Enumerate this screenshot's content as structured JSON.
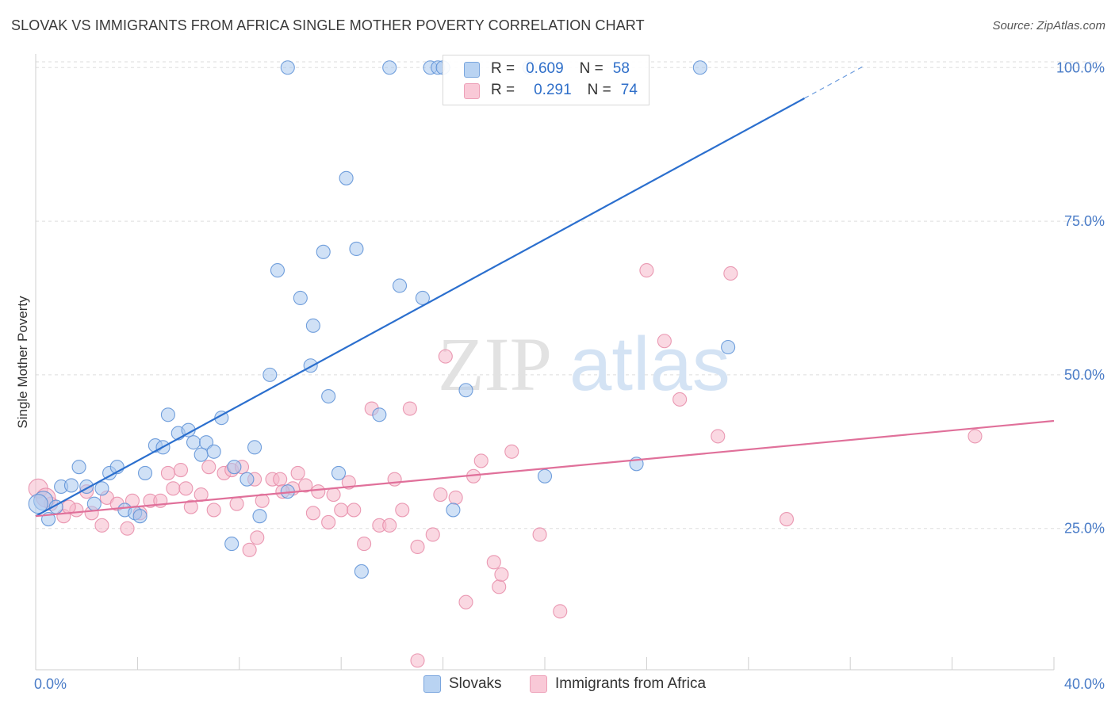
{
  "title": "SLOVAK VS IMMIGRANTS FROM AFRICA SINGLE MOTHER POVERTY CORRELATION CHART",
  "source": "Source: ZipAtlas.com",
  "watermark": {
    "zip": "ZIP",
    "atlas": "atlas"
  },
  "colors": {
    "slovaks_fill": "#a9c8ee",
    "slovaks_stroke": "#5a8fd6",
    "slovaks_line": "#2b6fce",
    "africa_fill": "#f6b8cb",
    "africa_stroke": "#e68aa7",
    "africa_line": "#e0709a",
    "tick_label": "#4a7cc7",
    "grid": "#dddddd"
  },
  "legend": {
    "rows": [
      {
        "r_label": "R =",
        "r_value": "0.609",
        "n_label": "N =",
        "n_value": "58"
      },
      {
        "r_label": "R =",
        "r_value": "0.291",
        "n_label": "N =",
        "n_value": "74"
      }
    ]
  },
  "chart_data": {
    "type": "scatter",
    "title": "SLOVAK VS IMMIGRANTS FROM AFRICA SINGLE MOTHER POVERTY CORRELATION CHART",
    "xlabel": "",
    "ylabel": "Single Mother Poverty",
    "xlim": [
      0,
      40
    ],
    "ylim": [
      2,
      103
    ],
    "x_tick_labels": [
      "0.0%",
      "40.0%"
    ],
    "y_ticks": [
      25,
      50,
      75,
      100
    ],
    "y_tick_labels": [
      "25.0%",
      "50.0%",
      "75.0%",
      "100.0%"
    ],
    "grid": true,
    "legend_position": "top-center",
    "series": [
      {
        "name": "Slovaks",
        "r": 0.609,
        "n": 58,
        "trend": {
          "x0": 0,
          "y0": 27.0,
          "x1": 30.2,
          "y1": 95.0,
          "dashed_to_x": 32.5
        },
        "points": [
          [
            0.3,
            29.5
          ],
          [
            0.5,
            26.5
          ],
          [
            0.8,
            28.5
          ],
          [
            1.0,
            31.8
          ],
          [
            1.4,
            32.0
          ],
          [
            1.7,
            35.0
          ],
          [
            2.0,
            31.8
          ],
          [
            2.3,
            29.0
          ],
          [
            2.6,
            31.5
          ],
          [
            2.9,
            34.0
          ],
          [
            3.2,
            35.0
          ],
          [
            3.5,
            28.0
          ],
          [
            3.9,
            27.5
          ],
          [
            4.1,
            27.0
          ],
          [
            4.3,
            34.0
          ],
          [
            4.7,
            38.5
          ],
          [
            5.0,
            38.2
          ],
          [
            5.2,
            43.5
          ],
          [
            5.6,
            40.5
          ],
          [
            6.0,
            41.0
          ],
          [
            6.2,
            39.0
          ],
          [
            6.5,
            37.0
          ],
          [
            6.7,
            39.0
          ],
          [
            7.0,
            37.5
          ],
          [
            7.3,
            43.0
          ],
          [
            7.7,
            22.5
          ],
          [
            7.8,
            35.0
          ],
          [
            8.3,
            33.0
          ],
          [
            8.6,
            38.2
          ],
          [
            8.8,
            27.0
          ],
          [
            9.2,
            50.0
          ],
          [
            9.5,
            67.0
          ],
          [
            9.9,
            31.0
          ],
          [
            9.9,
            100.0
          ],
          [
            10.4,
            62.5
          ],
          [
            10.8,
            51.5
          ],
          [
            10.9,
            58.0
          ],
          [
            11.3,
            70.0
          ],
          [
            11.5,
            46.5
          ],
          [
            11.9,
            34.0
          ],
          [
            12.2,
            82.0
          ],
          [
            12.6,
            70.5
          ],
          [
            12.8,
            18.0
          ],
          [
            13.5,
            43.5
          ],
          [
            13.9,
            100.0
          ],
          [
            14.3,
            64.5
          ],
          [
            15.5,
            100.0
          ],
          [
            15.8,
            100.0
          ],
          [
            16.0,
            100.0
          ],
          [
            16.4,
            28.0
          ],
          [
            16.9,
            47.5
          ],
          [
            19.4,
            100.0
          ],
          [
            20.0,
            33.5
          ],
          [
            23.6,
            35.5
          ],
          [
            26.1,
            100.0
          ],
          [
            27.2,
            54.5
          ],
          [
            15.2,
            62.5
          ],
          [
            0.1,
            29.0
          ]
        ]
      },
      {
        "name": "Immigrants from Africa",
        "r": 0.291,
        "n": 74,
        "trend": {
          "x0": 0,
          "y0": 27.0,
          "x1": 40,
          "y1": 42.5
        },
        "points": [
          [
            0.1,
            31.5
          ],
          [
            0.6,
            29.0
          ],
          [
            1.1,
            27.0
          ],
          [
            1.6,
            28.0
          ],
          [
            2.0,
            31.0
          ],
          [
            2.2,
            27.5
          ],
          [
            2.6,
            25.5
          ],
          [
            2.8,
            30.0
          ],
          [
            3.2,
            29.0
          ],
          [
            3.6,
            25.0
          ],
          [
            4.1,
            27.5
          ],
          [
            4.5,
            29.5
          ],
          [
            4.9,
            29.5
          ],
          [
            5.2,
            34.0
          ],
          [
            5.4,
            31.5
          ],
          [
            5.7,
            34.5
          ],
          [
            5.9,
            31.5
          ],
          [
            6.1,
            28.5
          ],
          [
            6.5,
            30.5
          ],
          [
            6.8,
            35.0
          ],
          [
            7.0,
            28.0
          ],
          [
            7.4,
            34.0
          ],
          [
            7.7,
            34.5
          ],
          [
            7.9,
            29.0
          ],
          [
            8.1,
            35.0
          ],
          [
            8.4,
            21.5
          ],
          [
            8.7,
            23.5
          ],
          [
            8.9,
            29.5
          ],
          [
            9.3,
            33.0
          ],
          [
            9.6,
            33.0
          ],
          [
            10.1,
            31.5
          ],
          [
            10.3,
            34.0
          ],
          [
            10.6,
            32.0
          ],
          [
            10.9,
            27.5
          ],
          [
            11.1,
            31.0
          ],
          [
            11.5,
            26.0
          ],
          [
            11.7,
            30.5
          ],
          [
            12.0,
            28.0
          ],
          [
            12.3,
            32.5
          ],
          [
            12.5,
            28.0
          ],
          [
            12.9,
            22.5
          ],
          [
            13.2,
            44.5
          ],
          [
            13.5,
            25.5
          ],
          [
            13.9,
            25.5
          ],
          [
            14.1,
            33.0
          ],
          [
            14.4,
            28.0
          ],
          [
            14.7,
            44.5
          ],
          [
            15.0,
            22.0
          ],
          [
            15.6,
            24.0
          ],
          [
            15.9,
            30.5
          ],
          [
            16.1,
            53.0
          ],
          [
            16.5,
            30.0
          ],
          [
            16.9,
            13.0
          ],
          [
            17.2,
            33.5
          ],
          [
            17.5,
            36.0
          ],
          [
            18.0,
            19.5
          ],
          [
            18.2,
            15.5
          ],
          [
            18.3,
            17.5
          ],
          [
            18.7,
            37.5
          ],
          [
            19.8,
            24.0
          ],
          [
            20.6,
            11.5
          ],
          [
            15.0,
            3.5
          ],
          [
            24.0,
            67.0
          ],
          [
            24.7,
            55.5
          ],
          [
            25.3,
            46.0
          ],
          [
            26.8,
            40.0
          ],
          [
            27.3,
            66.5
          ],
          [
            29.5,
            26.5
          ],
          [
            36.9,
            40.0
          ],
          [
            3.8,
            29.5
          ],
          [
            1.3,
            28.5
          ],
          [
            0.4,
            30.0
          ],
          [
            8.6,
            33.0
          ],
          [
            9.7,
            31.0
          ]
        ]
      }
    ]
  },
  "bottom_legend": [
    {
      "label": "Slovaks"
    },
    {
      "label": "Immigrants from Africa"
    }
  ]
}
